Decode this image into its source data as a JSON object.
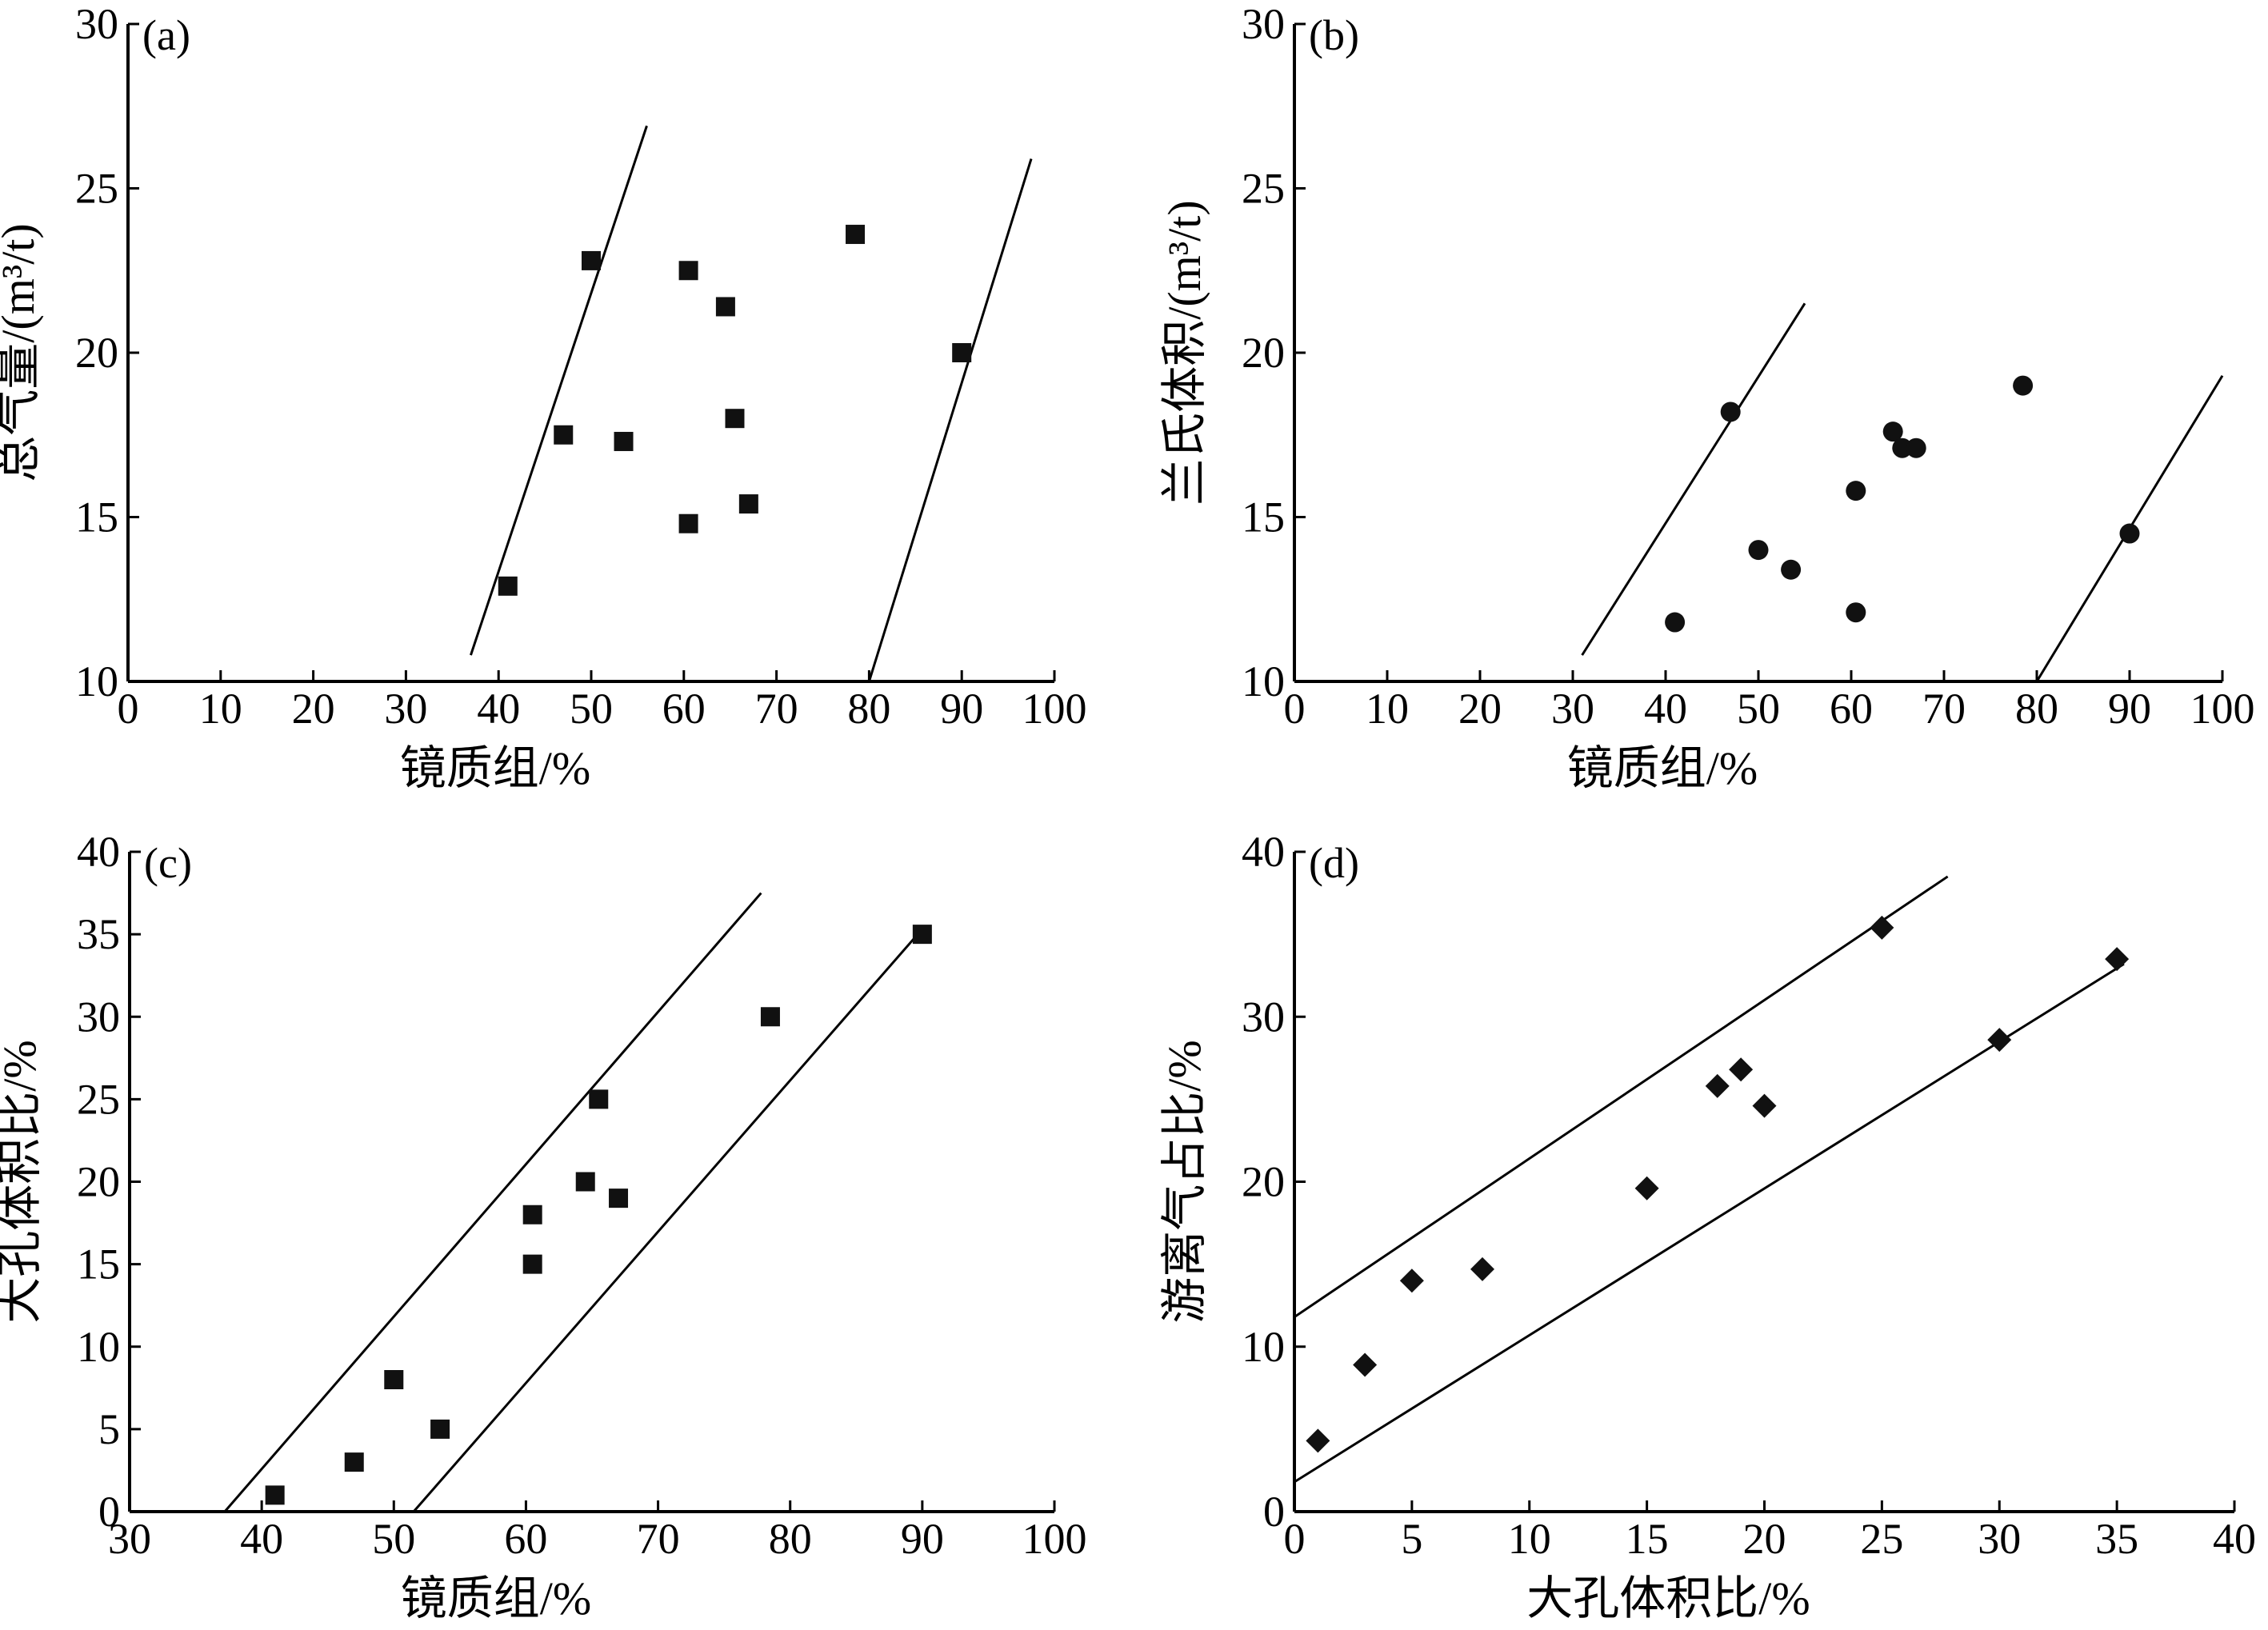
{
  "chart_data": [
    {
      "id": "a",
      "panel_label": "(a)",
      "type": "scatter",
      "marker": "square",
      "xlabel": "镜质组/%",
      "ylabel": "总气量/(m³/t)",
      "xlim": [
        0,
        100
      ],
      "ylim": [
        10,
        30
      ],
      "xticks": [
        0,
        10,
        20,
        30,
        40,
        50,
        60,
        70,
        80,
        90,
        100
      ],
      "yticks": [
        10,
        15,
        20,
        25,
        30
      ],
      "points": [
        [
          41,
          12.9
        ],
        [
          47,
          17.5
        ],
        [
          50,
          22.8
        ],
        [
          53.5,
          17.3
        ],
        [
          60.5,
          22.5
        ],
        [
          60.5,
          14.8
        ],
        [
          64.5,
          21.4
        ],
        [
          65.5,
          18
        ],
        [
          67,
          15.4
        ],
        [
          78.5,
          23.6
        ],
        [
          90,
          20
        ]
      ],
      "lines": [
        [
          [
            37,
            10.8
          ],
          [
            56,
            26.9
          ]
        ],
        [
          [
            80,
            10
          ]
        ],
        [
          [
            80,
            10
          ],
          [
            97.5,
            25.9
          ]
        ]
      ]
    },
    {
      "id": "b",
      "panel_label": "(b)",
      "type": "scatter",
      "marker": "circle",
      "xlabel": "镜质组/%",
      "ylabel": "兰氏体积/(m³/t)",
      "xlim": [
        0,
        100
      ],
      "ylim": [
        10,
        30
      ],
      "xticks": [
        0,
        10,
        20,
        30,
        40,
        50,
        60,
        70,
        80,
        90,
        100
      ],
      "yticks": [
        10,
        15,
        20,
        25,
        30
      ],
      "points": [
        [
          41,
          11.8
        ],
        [
          47,
          18.2
        ],
        [
          50,
          14
        ],
        [
          53.5,
          13.4
        ],
        [
          60.5,
          15.8
        ],
        [
          60.5,
          12.1
        ],
        [
          64.5,
          17.6
        ],
        [
          65.5,
          17.1
        ],
        [
          67,
          17.1
        ],
        [
          78.5,
          19
        ],
        [
          90,
          14.5
        ]
      ],
      "lines": [
        [
          [
            31,
            10.8
          ],
          [
            55,
            21.5
          ]
        ],
        [
          [
            80,
            10
          ],
          [
            100,
            19.3
          ]
        ]
      ]
    },
    {
      "id": "c",
      "panel_label": "(c)",
      "type": "scatter",
      "marker": "square",
      "xlabel": "镜质组/%",
      "ylabel": "大孔体积比/%",
      "xlim": [
        30,
        100
      ],
      "ylim": [
        0,
        40
      ],
      "xticks": [
        30,
        40,
        50,
        60,
        70,
        80,
        90,
        100
      ],
      "yticks": [
        0,
        5,
        10,
        15,
        20,
        25,
        30,
        35,
        40
      ],
      "points": [
        [
          41,
          1
        ],
        [
          47,
          3
        ],
        [
          50,
          8
        ],
        [
          53.5,
          5
        ],
        [
          60.5,
          18
        ],
        [
          60.5,
          15
        ],
        [
          64.5,
          20
        ],
        [
          65.5,
          25
        ],
        [
          67,
          19
        ],
        [
          78.5,
          30
        ],
        [
          90,
          35
        ]
      ],
      "lines": [
        [
          [
            37.2,
            0
          ],
          [
            77.8,
            37.5
          ]
        ],
        [
          [
            51.5,
            0
          ],
          [
            90.2,
            35.5
          ]
        ]
      ]
    },
    {
      "id": "d",
      "panel_label": "(d)",
      "type": "scatter",
      "marker": "diamond",
      "xlabel": "大孔体积比/%",
      "ylabel": "游离气占比/%",
      "xlim": [
        0,
        40
      ],
      "ylim": [
        0,
        40
      ],
      "xticks": [
        0,
        5,
        10,
        15,
        20,
        25,
        30,
        35,
        40
      ],
      "yticks": [
        0,
        10,
        20,
        30,
        40
      ],
      "points": [
        [
          1,
          4.3
        ],
        [
          3,
          8.9
        ],
        [
          5,
          14
        ],
        [
          8,
          14.7
        ],
        [
          15,
          19.6
        ],
        [
          18,
          25.8
        ],
        [
          19,
          26.8
        ],
        [
          20,
          24.6
        ],
        [
          25,
          35.4
        ],
        [
          30,
          28.6
        ],
        [
          35,
          33.5
        ]
      ],
      "lines": [
        [
          [
            0,
            11.8
          ],
          [
            27.8,
            38.5
          ]
        ],
        [
          [
            0,
            1.8
          ],
          [
            35.3,
            33.2
          ]
        ]
      ]
    }
  ]
}
